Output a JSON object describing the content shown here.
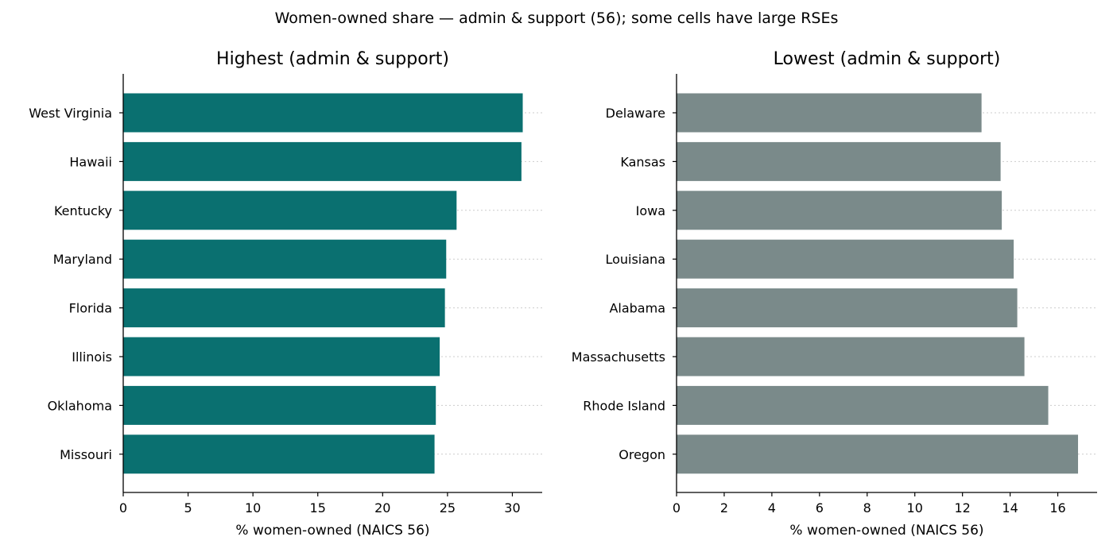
{
  "chart_data": {
    "suptitle": "Women-owned share — admin & support (56); some cells have large RSEs",
    "panels": [
      {
        "type": "bar",
        "orientation": "horizontal",
        "title": "Highest (admin & support)",
        "xlabel": "% women-owned (NAICS 56)",
        "color": "#0a7070",
        "xlim": [
          0,
          32.3
        ],
        "xticks": [
          0,
          5,
          10,
          15,
          20,
          25,
          30
        ],
        "categories": [
          "West Virginia",
          "Hawaii",
          "Kentucky",
          "Maryland",
          "Florida",
          "Illinois",
          "Oklahoma",
          "Missouri"
        ],
        "values": [
          30.8,
          30.7,
          25.7,
          24.9,
          24.8,
          24.4,
          24.1,
          24.0
        ],
        "grid": "y dotted"
      },
      {
        "type": "bar",
        "orientation": "horizontal",
        "title": "Lowest (admin & support)",
        "xlabel": "% women-owned (NAICS 56)",
        "color": "#7a8a8a",
        "xlim": [
          0,
          17.65
        ],
        "xticks": [
          0,
          2,
          4,
          6,
          8,
          10,
          12,
          14,
          16
        ],
        "categories": [
          "Delaware",
          "Kansas",
          "Iowa",
          "Louisiana",
          "Alabama",
          "Massachusetts",
          "Rhode Island",
          "Oregon"
        ],
        "values": [
          12.8,
          13.6,
          13.65,
          14.15,
          14.3,
          14.6,
          15.6,
          16.85
        ],
        "grid": "y dotted"
      }
    ]
  }
}
